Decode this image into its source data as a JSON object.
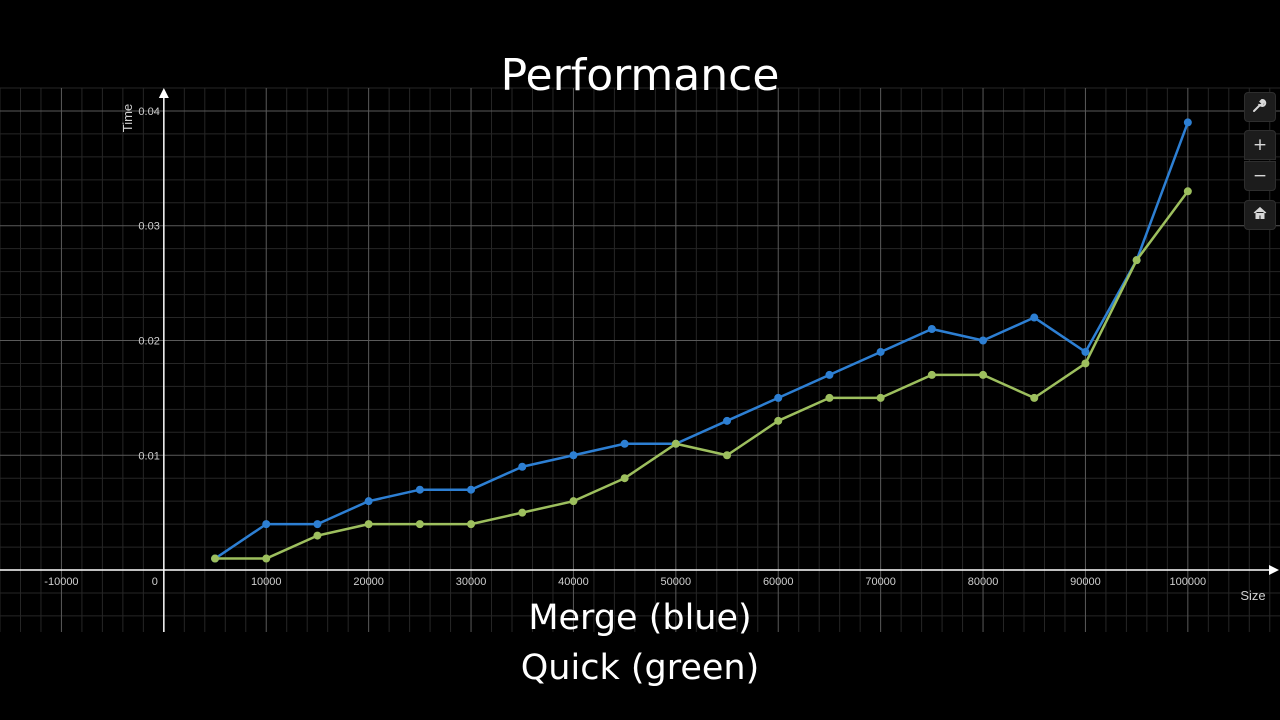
{
  "title": "Performance",
  "captions": {
    "line1": "Merge (blue)",
    "line2": "Quick (green)"
  },
  "toolbar": {
    "wrench_icon": "wrench-icon",
    "zoom_in_icon": "plus-icon",
    "zoom_out_icon": "minus-icon",
    "home_icon": "home-icon"
  },
  "chart_data": {
    "type": "line",
    "xlabel": "Size",
    "ylabel": "Time",
    "xlim": [
      -16000,
      109000
    ],
    "ylim": [
      -0.0054,
      0.042
    ],
    "grid": true,
    "x_ticks": [
      -10000,
      0,
      10000,
      20000,
      30000,
      40000,
      50000,
      60000,
      70000,
      80000,
      90000,
      100000
    ],
    "x_tick_labels": [
      "-10000",
      "0",
      "10000",
      "20000",
      "30000",
      "40000",
      "50000",
      "60000",
      "70000",
      "80000",
      "90000",
      "100000"
    ],
    "y_ticks": [
      0.01,
      0.02,
      0.03,
      0.04
    ],
    "y_tick_labels": [
      "0.01",
      "0.02",
      "0.03",
      "0.04"
    ],
    "x": [
      5000,
      10000,
      15000,
      20000,
      25000,
      30000,
      35000,
      40000,
      45000,
      50000,
      55000,
      60000,
      65000,
      70000,
      75000,
      80000,
      85000,
      90000,
      95000,
      100000
    ],
    "series": [
      {
        "color": "#2d7fd3",
        "values": [
          0.001,
          0.004,
          0.004,
          0.006,
          0.007,
          0.007,
          0.009,
          0.01,
          0.011,
          0.011,
          0.013,
          0.015,
          0.017,
          0.019,
          0.021,
          0.02,
          0.022,
          0.019,
          0.027,
          0.039
        ]
      },
      {
        "color": "#9dbf5e",
        "values": [
          0.001,
          0.001,
          0.003,
          0.004,
          0.004,
          0.004,
          0.005,
          0.006,
          0.008,
          0.011,
          0.01,
          0.013,
          0.015,
          0.015,
          0.017,
          0.017,
          0.015,
          0.018,
          0.027,
          0.033
        ]
      }
    ],
    "colors": {
      "background": "#000000",
      "grid_major": "#5a5a5a",
      "grid_minor": "#262626",
      "axis": "#ffffff",
      "tick_label": "#cfcfcf"
    }
  }
}
